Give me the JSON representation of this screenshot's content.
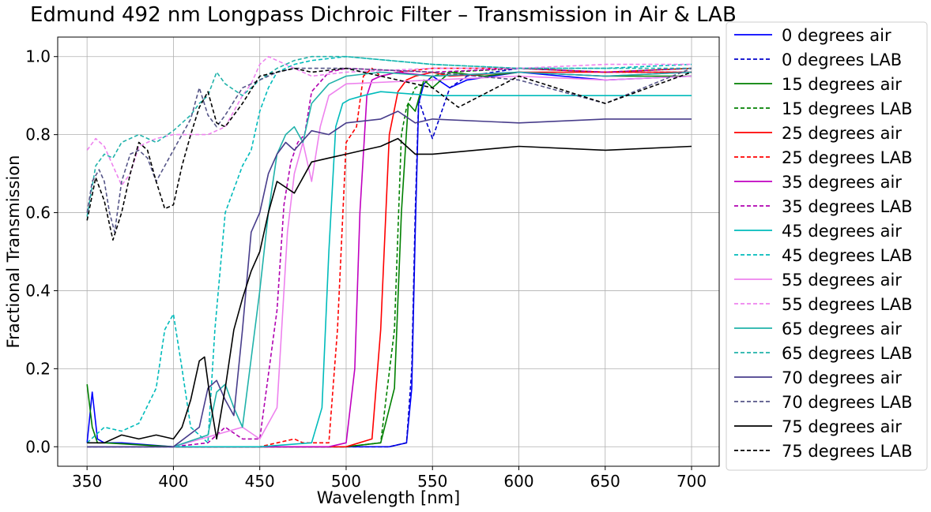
{
  "chart_data": {
    "type": "line",
    "title": "Edmund 492 nm Longpass Dichroic Filter – Transmission in Air & LAB",
    "xlabel": "Wavelength [nm]",
    "ylabel": "Fractional Transmission",
    "xlim": [
      333,
      716
    ],
    "ylim": [
      -0.05,
      1.05
    ],
    "xticks": [
      350,
      400,
      450,
      500,
      550,
      600,
      650,
      700
    ],
    "xtick_labels": [
      "350",
      "400",
      "450",
      "500",
      "550",
      "600",
      "650",
      "700"
    ],
    "yticks": [
      0.0,
      0.2,
      0.4,
      0.6,
      0.8,
      1.0
    ],
    "ytick_labels": [
      "0.0",
      "0.2",
      "0.4",
      "0.6",
      "0.8",
      "1.0"
    ],
    "grid": true,
    "legend_position": "outside-right",
    "series": [
      {
        "name": "0 degrees air",
        "color": "#0000ff",
        "style": "solid",
        "x": [
          350,
          353,
          356,
          360,
          370,
          400,
          450,
          500,
          525,
          535,
          538,
          540,
          542,
          545,
          550,
          560,
          570,
          600,
          650,
          700
        ],
        "y": [
          0.01,
          0.14,
          0.02,
          0.01,
          0.01,
          0.0,
          0.0,
          0.0,
          0.0,
          0.01,
          0.15,
          0.55,
          0.88,
          0.93,
          0.95,
          0.92,
          0.94,
          0.96,
          0.94,
          0.95
        ]
      },
      {
        "name": "0 degrees LAB",
        "color": "#0000cc",
        "style": "dashed",
        "x": [
          350,
          400,
          500,
          525,
          535,
          538,
          540,
          542,
          545,
          550,
          560,
          570,
          600,
          650,
          700
        ],
        "y": [
          0.0,
          0.0,
          0.0,
          0.0,
          0.01,
          0.2,
          0.6,
          0.89,
          0.85,
          0.79,
          0.92,
          0.95,
          0.97,
          0.96,
          0.96
        ]
      },
      {
        "name": "15 degrees air",
        "color": "#008000",
        "style": "solid",
        "x": [
          350,
          353,
          356,
          360,
          400,
          450,
          500,
          520,
          528,
          532,
          536,
          540,
          545,
          550,
          560,
          580,
          600,
          650,
          700
        ],
        "y": [
          0.16,
          0.05,
          0.01,
          0.01,
          0.0,
          0.0,
          0.0,
          0.01,
          0.15,
          0.6,
          0.88,
          0.86,
          0.94,
          0.92,
          0.96,
          0.95,
          0.96,
          0.95,
          0.95
        ]
      },
      {
        "name": "15 degrees LAB",
        "color": "#008000",
        "style": "dashed",
        "x": [
          350,
          400,
          500,
          520,
          528,
          532,
          535,
          540,
          545,
          550,
          560,
          600,
          650,
          700
        ],
        "y": [
          0.0,
          0.0,
          0.0,
          0.01,
          0.3,
          0.8,
          0.87,
          0.92,
          0.93,
          0.95,
          0.96,
          0.97,
          0.96,
          0.97
        ]
      },
      {
        "name": "25 degrees air",
        "color": "#ff0000",
        "style": "solid",
        "x": [
          350,
          400,
          450,
          500,
          515,
          520,
          525,
          530,
          535,
          540,
          550,
          560,
          600,
          650,
          700
        ],
        "y": [
          0.0,
          0.0,
          0.0,
          0.0,
          0.02,
          0.3,
          0.8,
          0.91,
          0.94,
          0.95,
          0.96,
          0.95,
          0.96,
          0.96,
          0.96
        ]
      },
      {
        "name": "25 degrees LAB",
        "color": "#ff0000",
        "style": "dashed",
        "x": [
          350,
          400,
          450,
          470,
          475,
          480,
          490,
          495,
          500,
          503,
          506,
          510,
          515,
          520,
          530,
          550,
          600,
          650,
          700
        ],
        "y": [
          0.0,
          0.0,
          0.0,
          0.02,
          0.01,
          0.01,
          0.01,
          0.3,
          0.78,
          0.8,
          0.82,
          0.95,
          0.97,
          0.95,
          0.96,
          0.97,
          0.97,
          0.96,
          0.97
        ]
      },
      {
        "name": "35 degrees air",
        "color": "#c000c0",
        "style": "solid",
        "x": [
          350,
          400,
          450,
          490,
          500,
          505,
          508,
          512,
          515,
          520,
          530,
          550,
          600,
          650,
          700
        ],
        "y": [
          0.0,
          0.0,
          0.0,
          0.0,
          0.01,
          0.2,
          0.6,
          0.9,
          0.94,
          0.95,
          0.96,
          0.95,
          0.96,
          0.95,
          0.96
        ]
      },
      {
        "name": "35 degrees LAB",
        "color": "#b000b0",
        "style": "dashed",
        "x": [
          350,
          400,
          420,
          430,
          440,
          450,
          460,
          464,
          468,
          472,
          476,
          480,
          490,
          500,
          550,
          600,
          650,
          700
        ],
        "y": [
          0.0,
          0.0,
          0.01,
          0.05,
          0.02,
          0.02,
          0.35,
          0.62,
          0.73,
          0.78,
          0.8,
          0.91,
          0.96,
          0.97,
          0.96,
          0.97,
          0.96,
          0.97
        ]
      },
      {
        "name": "45 degrees air",
        "color": "#00bbbb",
        "style": "solid",
        "x": [
          350,
          400,
          450,
          480,
          486,
          490,
          494,
          498,
          502,
          510,
          520,
          550,
          600,
          650,
          700
        ],
        "y": [
          0.0,
          0.0,
          0.0,
          0.01,
          0.1,
          0.5,
          0.82,
          0.88,
          0.89,
          0.9,
          0.91,
          0.9,
          0.9,
          0.9,
          0.9
        ]
      },
      {
        "name": "45 degrees LAB",
        "color": "#00bbbb",
        "style": "dashed",
        "x": [
          350,
          360,
          370,
          380,
          390,
          395,
          400,
          405,
          410,
          420,
          424,
          430,
          440,
          445,
          450,
          455,
          460,
          470,
          480,
          500,
          550,
          600,
          650,
          700
        ],
        "y": [
          0.01,
          0.05,
          0.04,
          0.06,
          0.15,
          0.3,
          0.34,
          0.2,
          0.05,
          0.01,
          0.3,
          0.6,
          0.72,
          0.76,
          0.86,
          0.92,
          0.96,
          0.98,
          0.99,
          1.0,
          0.98,
          0.97,
          0.97,
          0.98
        ]
      },
      {
        "name": "55 degrees air",
        "color": "#ee82ee",
        "style": "solid",
        "x": [
          350,
          400,
          440,
          450,
          460,
          466,
          470,
          475,
          480,
          485,
          490,
          500,
          550,
          600,
          650,
          700
        ],
        "y": [
          0.0,
          0.0,
          0.05,
          0.02,
          0.1,
          0.55,
          0.7,
          0.78,
          0.68,
          0.82,
          0.9,
          0.93,
          0.94,
          0.95,
          0.94,
          0.95
        ]
      },
      {
        "name": "55 degrees LAB",
        "color": "#ee82ee",
        "style": "dashed",
        "x": [
          350,
          355,
          360,
          365,
          370,
          375,
          380,
          385,
          390,
          400,
          410,
          420,
          430,
          440,
          445,
          450,
          455,
          460,
          470,
          480,
          500,
          550,
          600,
          650,
          700
        ],
        "y": [
          0.76,
          0.79,
          0.77,
          0.72,
          0.67,
          0.7,
          0.77,
          0.78,
          0.79,
          0.8,
          0.8,
          0.8,
          0.82,
          0.9,
          0.93,
          0.98,
          1.0,
          0.99,
          0.97,
          0.95,
          0.96,
          0.97,
          0.97,
          0.98,
          0.98
        ]
      },
      {
        "name": "65 degrees air",
        "color": "#20b2aa",
        "style": "solid",
        "x": [
          350,
          400,
          420,
          425,
          430,
          435,
          440,
          450,
          455,
          460,
          465,
          470,
          475,
          480,
          490,
          500,
          520,
          550,
          600,
          650,
          700
        ],
        "y": [
          0.0,
          0.0,
          0.03,
          0.14,
          0.16,
          0.1,
          0.05,
          0.4,
          0.6,
          0.75,
          0.8,
          0.82,
          0.78,
          0.88,
          0.93,
          0.95,
          0.96,
          0.95,
          0.96,
          0.95,
          0.96
        ]
      },
      {
        "name": "65 degrees LAB",
        "color": "#20b2aa",
        "style": "dashed",
        "x": [
          350,
          355,
          360,
          365,
          370,
          380,
          390,
          400,
          410,
          415,
          420,
          425,
          430,
          440,
          450,
          460,
          470,
          480,
          500,
          550,
          600,
          650,
          700
        ],
        "y": [
          0.59,
          0.72,
          0.75,
          0.74,
          0.78,
          0.8,
          0.78,
          0.81,
          0.85,
          0.88,
          0.9,
          0.96,
          0.93,
          0.9,
          0.94,
          0.97,
          0.99,
          1.0,
          1.0,
          0.98,
          0.97,
          0.97,
          0.97
        ]
      },
      {
        "name": "70 degrees air",
        "color": "#483d8b",
        "style": "solid",
        "x": [
          350,
          400,
          415,
          420,
          425,
          430,
          435,
          440,
          445,
          450,
          455,
          460,
          465,
          470,
          480,
          490,
          500,
          520,
          530,
          540,
          550,
          600,
          650,
          700
        ],
        "y": [
          0.0,
          0.0,
          0.05,
          0.15,
          0.17,
          0.12,
          0.08,
          0.3,
          0.55,
          0.6,
          0.7,
          0.75,
          0.78,
          0.76,
          0.81,
          0.8,
          0.83,
          0.84,
          0.86,
          0.83,
          0.84,
          0.83,
          0.84,
          0.84
        ]
      },
      {
        "name": "70 degrees LAB",
        "color": "#555588",
        "style": "dashed",
        "x": [
          350,
          353,
          357,
          360,
          363,
          366,
          370,
          375,
          380,
          385,
          390,
          395,
          400,
          405,
          410,
          415,
          420,
          425,
          430,
          440,
          450,
          460,
          470,
          500,
          550,
          600,
          650,
          700
        ],
        "y": [
          0.6,
          0.68,
          0.71,
          0.68,
          0.6,
          0.55,
          0.68,
          0.75,
          0.76,
          0.74,
          0.68,
          0.72,
          0.76,
          0.8,
          0.84,
          0.92,
          0.85,
          0.82,
          0.85,
          0.92,
          0.94,
          0.96,
          0.97,
          0.97,
          0.96,
          0.94,
          0.88,
          0.97
        ]
      },
      {
        "name": "75 degrees air",
        "color": "#000000",
        "style": "solid",
        "x": [
          350,
          360,
          370,
          380,
          390,
          400,
          405,
          410,
          415,
          418,
          422,
          425,
          430,
          435,
          440,
          445,
          450,
          455,
          460,
          470,
          480,
          490,
          500,
          510,
          520,
          530,
          540,
          550,
          600,
          650,
          700
        ],
        "y": [
          0.01,
          0.01,
          0.03,
          0.02,
          0.03,
          0.02,
          0.05,
          0.12,
          0.22,
          0.23,
          0.1,
          0.02,
          0.15,
          0.3,
          0.38,
          0.45,
          0.5,
          0.6,
          0.68,
          0.65,
          0.73,
          0.74,
          0.75,
          0.76,
          0.77,
          0.79,
          0.75,
          0.75,
          0.77,
          0.76,
          0.77
        ]
      },
      {
        "name": "75 degrees LAB",
        "color": "#000000",
        "style": "dashed",
        "x": [
          350,
          355,
          360,
          365,
          370,
          375,
          380,
          385,
          390,
          395,
          400,
          405,
          410,
          415,
          420,
          425,
          430,
          440,
          450,
          460,
          470,
          480,
          500,
          550,
          565,
          600,
          650,
          700
        ],
        "y": [
          0.58,
          0.69,
          0.63,
          0.53,
          0.6,
          0.7,
          0.78,
          0.76,
          0.68,
          0.61,
          0.62,
          0.72,
          0.8,
          0.87,
          0.91,
          0.83,
          0.82,
          0.88,
          0.95,
          0.96,
          0.97,
          0.96,
          0.97,
          0.92,
          0.87,
          0.95,
          0.88,
          0.96
        ]
      }
    ]
  }
}
